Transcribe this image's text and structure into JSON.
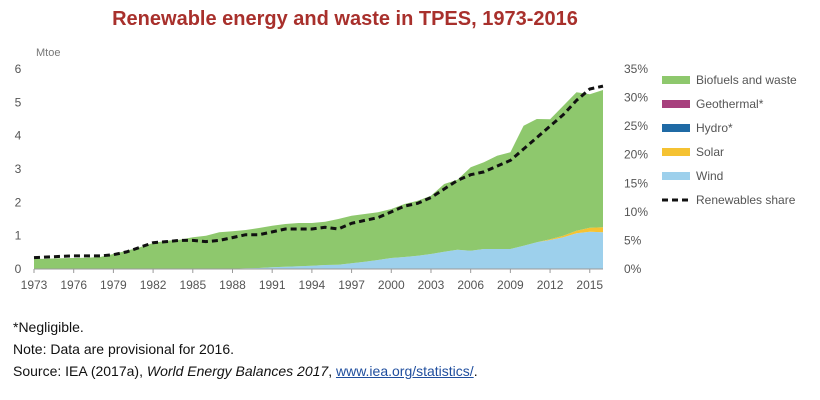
{
  "chart_data": {
    "type": "area",
    "title": "Renewable energy and waste in TPES, 1973-2016",
    "y_unit_label": "Mtoe",
    "ylim_left": [
      0,
      6
    ],
    "yticks_left": [
      "0",
      "1",
      "2",
      "3",
      "4",
      "5",
      "6"
    ],
    "ylim_right": [
      0,
      35
    ],
    "yticks_right": [
      "0%",
      "5%",
      "10%",
      "15%",
      "20%",
      "25%",
      "30%",
      "35%"
    ],
    "xlim": [
      1973,
      2016
    ],
    "xticks": [
      "1973",
      "1976",
      "1979",
      "1982",
      "1985",
      "1988",
      "1991",
      "1994",
      "1997",
      "2000",
      "2003",
      "2006",
      "2009",
      "2012",
      "2015"
    ],
    "legend_position": "right",
    "x": [
      1973,
      1974,
      1975,
      1976,
      1977,
      1978,
      1979,
      1980,
      1981,
      1982,
      1983,
      1984,
      1985,
      1986,
      1987,
      1988,
      1989,
      1990,
      1991,
      1992,
      1993,
      1994,
      1995,
      1996,
      1997,
      1998,
      1999,
      2000,
      2001,
      2002,
      2003,
      2004,
      2005,
      2006,
      2007,
      2008,
      2009,
      2010,
      2011,
      2012,
      2013,
      2014,
      2015,
      2016
    ],
    "series": [
      {
        "name": "Wind",
        "color": "#9dd0ec",
        "kind": "stacked-area",
        "values": [
          0,
          0,
          0,
          0,
          0,
          0,
          0,
          0,
          0,
          0,
          0,
          0,
          0,
          0,
          0,
          0.01,
          0.02,
          0.03,
          0.05,
          0.07,
          0.08,
          0.1,
          0.12,
          0.13,
          0.17,
          0.22,
          0.27,
          0.33,
          0.36,
          0.4,
          0.45,
          0.52,
          0.58,
          0.55,
          0.6,
          0.6,
          0.6,
          0.7,
          0.8,
          0.87,
          0.95,
          1.07,
          1.12,
          1.1
        ]
      },
      {
        "name": "Solar",
        "color": "#f5c232",
        "kind": "stacked-area",
        "values": [
          0,
          0,
          0,
          0,
          0,
          0,
          0,
          0,
          0,
          0,
          0,
          0,
          0,
          0,
          0,
          0,
          0,
          0,
          0,
          0,
          0,
          0,
          0,
          0,
          0,
          0,
          0,
          0,
          0,
          0,
          0,
          0,
          0,
          0,
          0,
          0,
          0,
          0,
          0,
          0.02,
          0.05,
          0.08,
          0.12,
          0.15
        ]
      },
      {
        "name": "Hydro*",
        "color": "#1f6aa5",
        "kind": "stacked-area",
        "values": [
          0,
          0,
          0,
          0,
          0,
          0,
          0,
          0,
          0,
          0,
          0,
          0,
          0,
          0,
          0,
          0,
          0,
          0,
          0,
          0,
          0,
          0,
          0,
          0,
          0,
          0,
          0,
          0,
          0,
          0,
          0,
          0,
          0,
          0,
          0,
          0,
          0,
          0,
          0,
          0,
          0,
          0,
          0,
          0
        ]
      },
      {
        "name": "Geothermal*",
        "color": "#a7407d",
        "kind": "stacked-area",
        "values": [
          0,
          0,
          0,
          0,
          0,
          0,
          0,
          0,
          0,
          0,
          0,
          0,
          0,
          0,
          0,
          0,
          0,
          0,
          0,
          0,
          0,
          0,
          0,
          0,
          0,
          0,
          0,
          0,
          0,
          0,
          0,
          0,
          0,
          0,
          0,
          0,
          0,
          0,
          0,
          0,
          0,
          0,
          0,
          0
        ]
      },
      {
        "name": "Biofuels and waste",
        "color": "#8ec86d",
        "kind": "stacked-area",
        "values": [
          0.3,
          0.31,
          0.32,
          0.33,
          0.34,
          0.36,
          0.45,
          0.55,
          0.65,
          0.78,
          0.85,
          0.88,
          0.95,
          1.0,
          1.1,
          1.12,
          1.15,
          1.2,
          1.25,
          1.28,
          1.3,
          1.28,
          1.3,
          1.37,
          1.43,
          1.43,
          1.43,
          1.47,
          1.59,
          1.65,
          1.75,
          2.03,
          2.1,
          2.5,
          2.6,
          2.8,
          2.9,
          3.6,
          3.7,
          3.6,
          3.9,
          4.15,
          4.0,
          4.12
        ]
      },
      {
        "name": "Renewables share",
        "color": "#111111",
        "kind": "dashed-line",
        "axis": "right",
        "values": [
          2.0,
          2.1,
          2.2,
          2.3,
          2.3,
          2.3,
          2.5,
          3.0,
          3.8,
          4.6,
          4.8,
          5.0,
          5.0,
          4.8,
          5.0,
          5.5,
          6.0,
          6.0,
          6.5,
          7.0,
          7.0,
          7.0,
          7.3,
          7.0,
          8.0,
          8.5,
          9.0,
          10.0,
          11.0,
          11.5,
          12.5,
          14.0,
          15.5,
          16.5,
          17.0,
          18.0,
          19.0,
          21.0,
          23.0,
          25.0,
          27.0,
          29.5,
          31.5,
          32.0
        ]
      }
    ]
  },
  "notes": {
    "negligible": "*Negligible.",
    "provisional": "Note: Data are provisional for 2016.",
    "source_prefix": "Source: IEA (2017a), ",
    "source_title": "World Energy Balances 2017",
    "source_sep": ", ",
    "source_link": "www.iea.org/statistics/",
    "source_end": "."
  }
}
